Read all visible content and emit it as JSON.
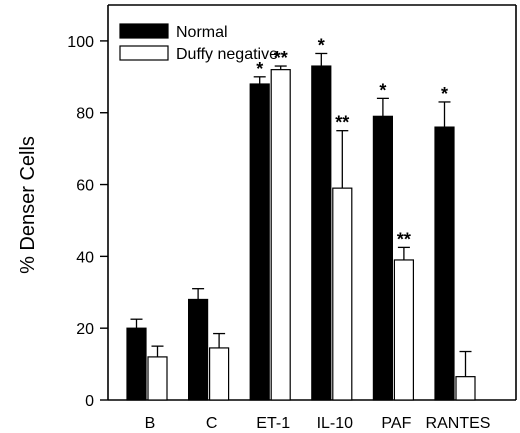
{
  "chart_data": {
    "type": "bar",
    "categories": [
      "B",
      "C",
      "ET-1",
      "IL-10",
      "PAF",
      "RANTES"
    ],
    "series": [
      {
        "name": "Normal",
        "color": "#000000",
        "values": [
          20,
          28,
          88,
          93,
          79,
          76
        ],
        "errors": [
          2.5,
          3,
          2,
          3.5,
          5,
          7
        ],
        "annotations": [
          "",
          "",
          "*",
          "*",
          "*",
          "*"
        ]
      },
      {
        "name": "Duffy negative",
        "color": "#ffffff",
        "values": [
          12,
          14.5,
          92,
          59,
          39,
          6.5
        ],
        "errors": [
          3,
          4,
          1,
          16,
          3.5,
          7
        ],
        "annotations": [
          "",
          "",
          "**",
          "**",
          "**",
          ""
        ]
      }
    ],
    "ylabel": "% Denser Cells",
    "xlabel": "",
    "ylim": [
      0,
      110
    ],
    "yticks": [
      "0",
      "20",
      "40",
      "60",
      "80",
      "100"
    ],
    "legend_position": "top-left",
    "grid": false
  }
}
